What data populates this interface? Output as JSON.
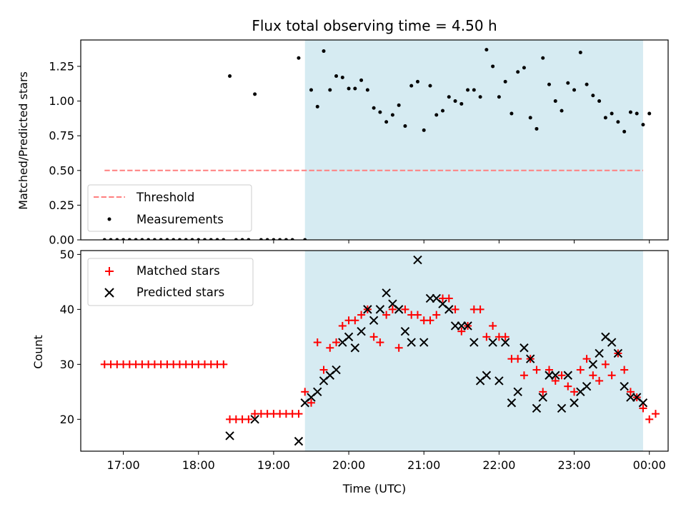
{
  "chart_data": [
    {
      "type": "scatter",
      "title": "Flux total observing time = 4.50 h",
      "xlabel": "",
      "ylabel": "Matched/Predicted stars",
      "xlim": [
        "16:26",
        "00:15"
      ],
      "ylim": [
        0,
        1.44
      ],
      "x_tick_labels": [],
      "y_ticks": [
        0.0,
        0.25,
        0.5,
        0.75,
        1.0,
        1.25
      ],
      "y_tick_labels": [
        "0.00",
        "0.25",
        "0.50",
        "0.75",
        "1.00",
        "1.25"
      ],
      "observing_window": {
        "start": "19:25",
        "end": "23:55",
        "color": "#add8e6"
      },
      "legend": {
        "position": "lower-left",
        "entries": [
          "Threshold",
          "Measurements"
        ]
      },
      "threshold": {
        "name": "Threshold",
        "value": 0.5,
        "x_start": "16:45",
        "x_end": "23:55",
        "color": "#ff7f7f"
      },
      "series": [
        {
          "name": "Measurements",
          "color": "#000000",
          "points": [
            [
              "16:45",
              0
            ],
            [
              "16:50",
              0
            ],
            [
              "16:55",
              0
            ],
            [
              "17:00",
              0
            ],
            [
              "17:05",
              0
            ],
            [
              "17:10",
              0
            ],
            [
              "17:15",
              0
            ],
            [
              "17:20",
              0
            ],
            [
              "17:25",
              0
            ],
            [
              "17:30",
              0
            ],
            [
              "17:35",
              0
            ],
            [
              "17:40",
              0
            ],
            [
              "17:45",
              0
            ],
            [
              "17:50",
              0
            ],
            [
              "17:55",
              0
            ],
            [
              "18:00",
              0
            ],
            [
              "18:05",
              0
            ],
            [
              "18:10",
              0
            ],
            [
              "18:15",
              0
            ],
            [
              "18:20",
              0
            ],
            [
              "18:25",
              1.18
            ],
            [
              "18:30",
              0
            ],
            [
              "18:35",
              0
            ],
            [
              "18:40",
              0
            ],
            [
              "18:45",
              1.05
            ],
            [
              "18:50",
              0
            ],
            [
              "18:55",
              0
            ],
            [
              "19:00",
              0
            ],
            [
              "19:05",
              0
            ],
            [
              "19:10",
              0
            ],
            [
              "19:15",
              0
            ],
            [
              "19:20",
              1.31
            ],
            [
              "19:25",
              0
            ],
            [
              "19:30",
              1.08
            ],
            [
              "19:35",
              0.96
            ],
            [
              "19:40",
              1.36
            ],
            [
              "19:45",
              1.08
            ],
            [
              "19:50",
              1.18
            ],
            [
              "19:55",
              1.17
            ],
            [
              "20:00",
              1.09
            ],
            [
              "20:05",
              1.09
            ],
            [
              "20:10",
              1.15
            ],
            [
              "20:15",
              1.08
            ],
            [
              "20:20",
              0.95
            ],
            [
              "20:25",
              0.92
            ],
            [
              "20:30",
              0.85
            ],
            [
              "20:35",
              0.9
            ],
            [
              "20:40",
              0.97
            ],
            [
              "20:45",
              0.82
            ],
            [
              "20:50",
              1.11
            ],
            [
              "20:55",
              1.14
            ],
            [
              "21:00",
              0.79
            ],
            [
              "21:05",
              1.11
            ],
            [
              "21:10",
              0.9
            ],
            [
              "21:15",
              0.93
            ],
            [
              "21:20",
              1.03
            ],
            [
              "21:25",
              1.0
            ],
            [
              "21:30",
              0.98
            ],
            [
              "21:35",
              1.08
            ],
            [
              "21:40",
              1.08
            ],
            [
              "21:45",
              1.03
            ],
            [
              "21:50",
              1.37
            ],
            [
              "21:55",
              1.25
            ],
            [
              "22:00",
              1.03
            ],
            [
              "22:05",
              1.14
            ],
            [
              "22:10",
              0.91
            ],
            [
              "22:15",
              1.21
            ],
            [
              "22:20",
              1.24
            ],
            [
              "22:25",
              0.88
            ],
            [
              "22:30",
              0.8
            ],
            [
              "22:35",
              1.31
            ],
            [
              "22:40",
              1.12
            ],
            [
              "22:45",
              1.0
            ],
            [
              "22:50",
              0.93
            ],
            [
              "22:55",
              1.13
            ],
            [
              "23:00",
              1.08
            ],
            [
              "23:05",
              1.35
            ],
            [
              "23:10",
              1.12
            ],
            [
              "23:15",
              1.04
            ],
            [
              "23:20",
              1.0
            ],
            [
              "23:25",
              0.88
            ],
            [
              "23:30",
              0.91
            ],
            [
              "23:35",
              0.85
            ],
            [
              "23:40",
              0.78
            ],
            [
              "23:45",
              0.92
            ],
            [
              "23:50",
              0.91
            ],
            [
              "23:55",
              0.83
            ],
            [
              "24:00",
              0.91
            ]
          ]
        }
      ]
    },
    {
      "type": "scatter",
      "title": "",
      "xlabel": "Time (UTC)",
      "ylabel": "Count",
      "xlim": [
        "16:26",
        "00:15"
      ],
      "ylim": [
        14.2,
        50.7
      ],
      "x_ticks": [
        "17:00",
        "18:00",
        "19:00",
        "20:00",
        "21:00",
        "22:00",
        "23:00",
        "24:00"
      ],
      "x_tick_labels": [
        "17:00",
        "18:00",
        "19:00",
        "20:00",
        "21:00",
        "22:00",
        "23:00",
        "00:00"
      ],
      "y_ticks": [
        20,
        30,
        40,
        50
      ],
      "y_tick_labels": [
        "20",
        "30",
        "40",
        "50"
      ],
      "observing_window": {
        "start": "19:25",
        "end": "23:55",
        "color": "#add8e6"
      },
      "legend": {
        "position": "upper-left",
        "entries": [
          "Matched stars",
          "Predicted stars"
        ]
      },
      "series": [
        {
          "name": "Matched stars",
          "marker": "plus",
          "color": "#ff0000",
          "points": [
            [
              "16:45",
              30
            ],
            [
              "16:50",
              30
            ],
            [
              "16:55",
              30
            ],
            [
              "17:00",
              30
            ],
            [
              "17:05",
              30
            ],
            [
              "17:10",
              30
            ],
            [
              "17:15",
              30
            ],
            [
              "17:20",
              30
            ],
            [
              "17:25",
              30
            ],
            [
              "17:30",
              30
            ],
            [
              "17:35",
              30
            ],
            [
              "17:40",
              30
            ],
            [
              "17:45",
              30
            ],
            [
              "17:50",
              30
            ],
            [
              "17:55",
              30
            ],
            [
              "18:00",
              30
            ],
            [
              "18:05",
              30
            ],
            [
              "18:10",
              30
            ],
            [
              "18:15",
              30
            ],
            [
              "18:20",
              30
            ],
            [
              "18:25",
              20
            ],
            [
              "18:30",
              20
            ],
            [
              "18:35",
              20
            ],
            [
              "18:40",
              20
            ],
            [
              "18:45",
              21
            ],
            [
              "18:50",
              21
            ],
            [
              "18:55",
              21
            ],
            [
              "19:00",
              21
            ],
            [
              "19:05",
              21
            ],
            [
              "19:10",
              21
            ],
            [
              "19:15",
              21
            ],
            [
              "19:20",
              21
            ],
            [
              "19:25",
              25
            ],
            [
              "19:30",
              23
            ],
            [
              "19:35",
              34
            ],
            [
              "19:40",
              29
            ],
            [
              "19:45",
              33
            ],
            [
              "19:50",
              34
            ],
            [
              "19:55",
              37
            ],
            [
              "20:00",
              38
            ],
            [
              "20:05",
              38
            ],
            [
              "20:10",
              39
            ],
            [
              "20:15",
              40
            ],
            [
              "20:20",
              35
            ],
            [
              "20:25",
              34
            ],
            [
              "20:30",
              39
            ],
            [
              "20:35",
              40
            ],
            [
              "20:40",
              33
            ],
            [
              "20:45",
              40
            ],
            [
              "20:50",
              39
            ],
            [
              "20:55",
              39
            ],
            [
              "21:00",
              38
            ],
            [
              "21:05",
              38
            ],
            [
              "21:10",
              39
            ],
            [
              "21:15",
              42
            ],
            [
              "21:20",
              42
            ],
            [
              "21:25",
              40
            ],
            [
              "21:30",
              36
            ],
            [
              "21:35",
              37
            ],
            [
              "21:40",
              40
            ],
            [
              "21:45",
              40
            ],
            [
              "21:50",
              35
            ],
            [
              "21:55",
              37
            ],
            [
              "22:00",
              35
            ],
            [
              "22:05",
              35
            ],
            [
              "22:10",
              31
            ],
            [
              "22:15",
              31
            ],
            [
              "22:20",
              28
            ],
            [
              "22:25",
              31
            ],
            [
              "22:30",
              29
            ],
            [
              "22:35",
              25
            ],
            [
              "22:40",
              29
            ],
            [
              "22:45",
              27
            ],
            [
              "22:50",
              28
            ],
            [
              "22:55",
              26
            ],
            [
              "23:00",
              25
            ],
            [
              "23:05",
              29
            ],
            [
              "23:10",
              31
            ],
            [
              "23:15",
              28
            ],
            [
              "23:20",
              27
            ],
            [
              "23:25",
              30
            ],
            [
              "23:30",
              28
            ],
            [
              "23:35",
              32
            ],
            [
              "23:40",
              29
            ],
            [
              "23:45",
              25
            ],
            [
              "23:50",
              24
            ],
            [
              "23:55",
              22
            ],
            [
              "24:00",
              20
            ],
            [
              "24:05",
              21
            ]
          ]
        },
        {
          "name": "Predicted stars",
          "marker": "x",
          "color": "#000000",
          "points": [
            [
              "18:25",
              17
            ],
            [
              "18:45",
              20
            ],
            [
              "19:20",
              16
            ],
            [
              "19:25",
              23
            ],
            [
              "19:30",
              24
            ],
            [
              "19:35",
              25
            ],
            [
              "19:40",
              27
            ],
            [
              "19:45",
              28
            ],
            [
              "19:50",
              29
            ],
            [
              "19:55",
              34
            ],
            [
              "20:00",
              35
            ],
            [
              "20:05",
              33
            ],
            [
              "20:10",
              36
            ],
            [
              "20:15",
              40
            ],
            [
              "20:20",
              38
            ],
            [
              "20:25",
              40
            ],
            [
              "20:30",
              43
            ],
            [
              "20:35",
              41
            ],
            [
              "20:40",
              40
            ],
            [
              "20:45",
              36
            ],
            [
              "20:50",
              34
            ],
            [
              "20:55",
              49
            ],
            [
              "21:00",
              34
            ],
            [
              "21:05",
              42
            ],
            [
              "21:10",
              42
            ],
            [
              "21:15",
              41
            ],
            [
              "21:20",
              40
            ],
            [
              "21:25",
              37
            ],
            [
              "21:30",
              37
            ],
            [
              "21:35",
              37
            ],
            [
              "21:40",
              34
            ],
            [
              "21:45",
              27
            ],
            [
              "21:50",
              28
            ],
            [
              "21:55",
              34
            ],
            [
              "22:00",
              27
            ],
            [
              "22:05",
              34
            ],
            [
              "22:10",
              23
            ],
            [
              "22:15",
              25
            ],
            [
              "22:20",
              33
            ],
            [
              "22:25",
              31
            ],
            [
              "22:30",
              22
            ],
            [
              "22:35",
              24
            ],
            [
              "22:40",
              28
            ],
            [
              "22:45",
              28
            ],
            [
              "22:50",
              22
            ],
            [
              "22:55",
              28
            ],
            [
              "23:00",
              23
            ],
            [
              "23:05",
              25
            ],
            [
              "23:10",
              26
            ],
            [
              "23:15",
              30
            ],
            [
              "23:20",
              32
            ],
            [
              "23:25",
              35
            ],
            [
              "23:30",
              34
            ],
            [
              "23:35",
              32
            ],
            [
              "23:40",
              26
            ],
            [
              "23:45",
              24
            ],
            [
              "23:50",
              24
            ],
            [
              "23:55",
              23
            ]
          ]
        }
      ]
    }
  ]
}
